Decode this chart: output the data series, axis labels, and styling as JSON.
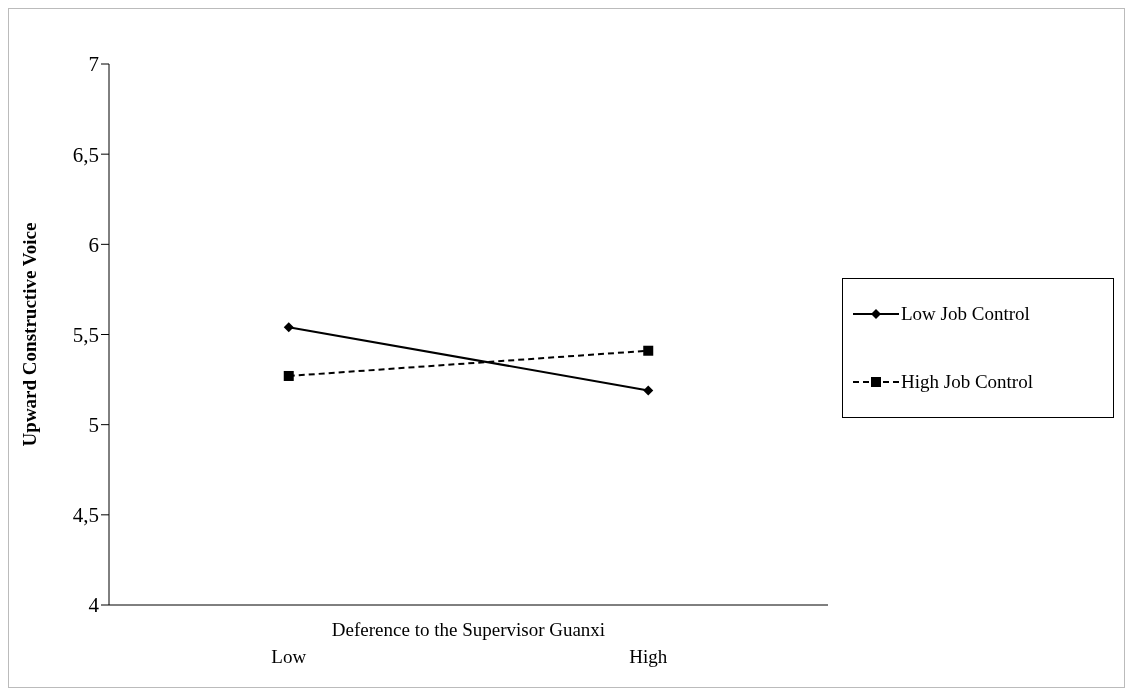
{
  "chart_data": {
    "type": "line",
    "xlabel": "Deference to the Supervisor Guanxi",
    "ylabel": "Upward Constructive Voice",
    "categories": [
      "Low",
      "High"
    ],
    "series": [
      {
        "name": "Low Job Control",
        "color": "#000000",
        "values": [
          5.54,
          5.19
        ],
        "marker": "diamond",
        "line_style": "solid"
      },
      {
        "name": "High Job Control",
        "color": "#000000",
        "values": [
          5.27,
          5.41
        ],
        "marker": "square",
        "line_style": "dashed"
      }
    ],
    "ylim": [
      4,
      7
    ],
    "yticks": [
      4,
      {
        "value": 4.5,
        "label": "4,5"
      },
      5,
      {
        "value": 5.5,
        "label": "5,5"
      },
      6,
      {
        "value": 6.5,
        "label": "6,5"
      },
      7
    ],
    "grid": false,
    "legend": "right"
  }
}
